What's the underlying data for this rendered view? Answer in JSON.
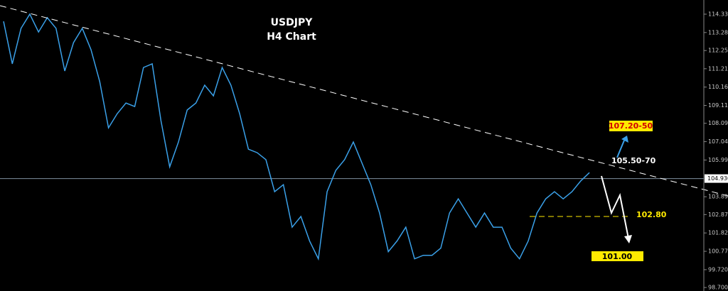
{
  "chart_data": {
    "type": "line",
    "title": "USDJPY",
    "subtitle": "H4 Chart",
    "categories": [
      null,
      null,
      null,
      null,
      null,
      null,
      null,
      null,
      null,
      null,
      null,
      null,
      null,
      null,
      null,
      null,
      null,
      null,
      null,
      null,
      null,
      null,
      null,
      null,
      null,
      null,
      null,
      null,
      null,
      null,
      null,
      null,
      null,
      null,
      null,
      null,
      null,
      null,
      null,
      null,
      null,
      null,
      null,
      null,
      null,
      null,
      null,
      null,
      null,
      null,
      null,
      null,
      null,
      null,
      null,
      null,
      null,
      null,
      null,
      null,
      null,
      null,
      null,
      null,
      null,
      null,
      null,
      null
    ],
    "values": [
      113.92,
      111.49,
      113.52,
      114.33,
      113.31,
      114.13,
      113.52,
      111.08,
      112.7,
      113.52,
      112.3,
      110.47,
      107.83,
      108.64,
      109.25,
      109.05,
      111.28,
      111.49,
      108.24,
      105.6,
      107.02,
      108.85,
      109.25,
      110.27,
      109.66,
      111.28,
      110.27,
      108.64,
      106.61,
      106.41,
      106.01,
      104.18,
      104.58,
      102.15,
      102.76,
      101.36,
      100.34,
      104.18,
      105.4,
      106.01,
      107.02,
      105.8,
      104.58,
      102.96,
      100.75,
      101.36,
      102.15,
      100.34,
      100.54,
      100.54,
      100.95,
      102.96,
      103.77,
      102.96,
      102.15,
      102.96,
      102.15,
      102.15,
      100.95,
      100.34,
      101.36,
      102.96,
      103.77,
      104.18,
      103.77,
      104.18,
      104.79,
      105.27
    ],
    "color": "#3aa0e8",
    "ylim": [
      98.5,
      115.14
    ],
    "yticks": [
      {
        "value": 114.33,
        "label": "114.330"
      },
      {
        "value": 113.28,
        "label": "113.280"
      },
      {
        "value": 112.25,
        "label": "112.250"
      },
      {
        "value": 111.21,
        "label": "111.210"
      },
      {
        "value": 110.16,
        "label": "110.160"
      },
      {
        "value": 109.11,
        "label": "109.110"
      },
      {
        "value": 108.09,
        "label": "108.090"
      },
      {
        "value": 107.04,
        "label": "107.040"
      },
      {
        "value": 105.99,
        "label": "105.990"
      },
      {
        "value": 103.89,
        "label": "103.890"
      },
      {
        "value": 102.87,
        "label": "102.870"
      },
      {
        "value": 101.82,
        "label": "101.820"
      },
      {
        "value": 100.77,
        "label": "100.770"
      },
      {
        "value": 99.72,
        "label": "99.720"
      },
      {
        "value": 98.7,
        "label": "98.700"
      }
    ],
    "current_price": {
      "value": 104.93,
      "label": "104.930"
    },
    "annotations": [
      "107.20-50",
      "105.50-70",
      "102.80",
      "101.00"
    ]
  }
}
